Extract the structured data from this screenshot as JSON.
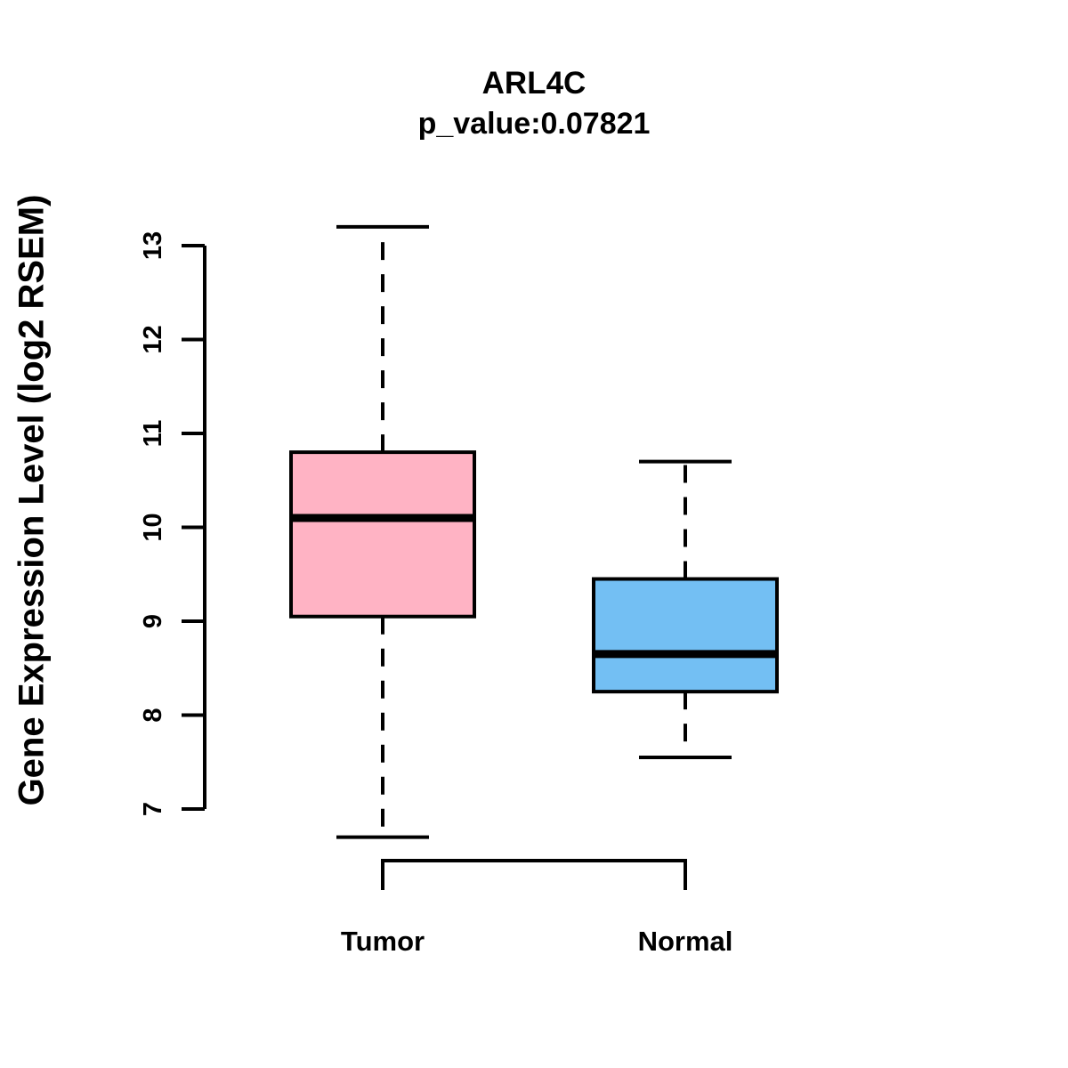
{
  "chart_data": {
    "type": "boxplot",
    "title": "ARL4C",
    "subtitle": "p_value:0.07821",
    "ylabel": "Gene Expression Level (log2 RSEM)",
    "categories": [
      "Tumor",
      "Normal"
    ],
    "yticks": [
      7,
      8,
      9,
      10,
      11,
      12,
      13
    ],
    "ylim": [
      6.5,
      13.4
    ],
    "grid": false,
    "legend": "none",
    "series": [
      {
        "name": "Tumor",
        "color": "#FFB3C4",
        "whisker_low": 6.7,
        "q1": 9.05,
        "median": 10.1,
        "q3": 10.8,
        "whisker_high": 13.2
      },
      {
        "name": "Normal",
        "color": "#73BFF3",
        "whisker_low": 7.55,
        "q1": 8.25,
        "median": 8.65,
        "q3": 9.45,
        "whisker_high": 10.7
      }
    ],
    "colors": {
      "stroke": "#000000",
      "background": "#ffffff"
    }
  }
}
